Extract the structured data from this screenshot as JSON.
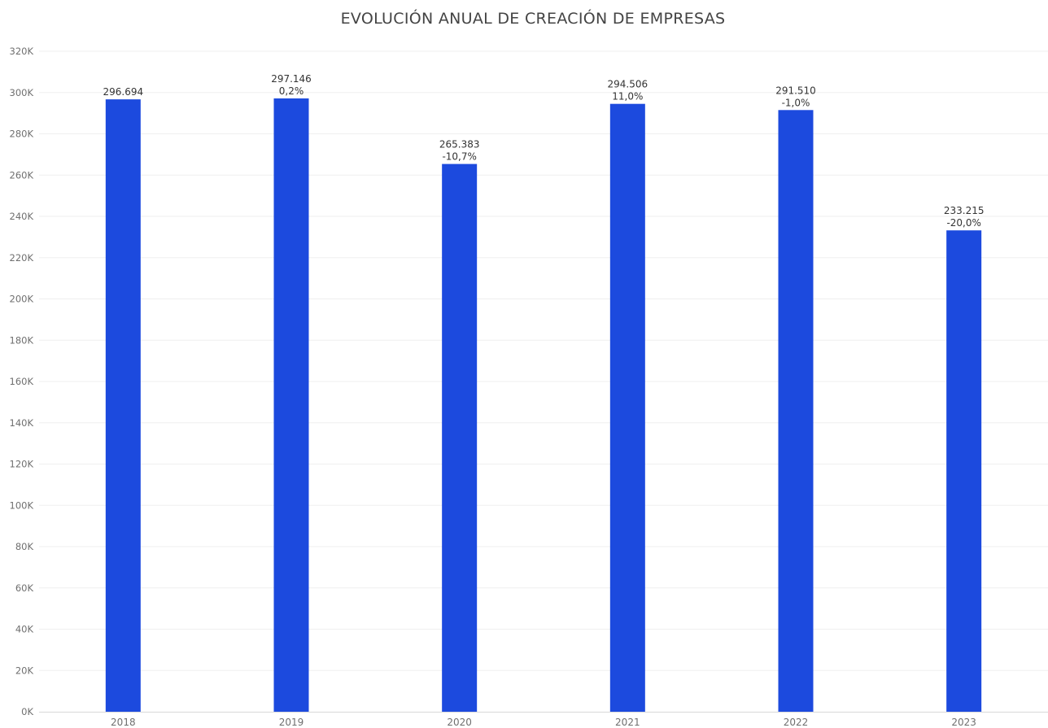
{
  "chart_data": {
    "type": "bar",
    "title": "EVOLUCIÓN ANUAL DE CREACIÓN DE EMPRESAS",
    "xlabel": "",
    "ylabel": "",
    "categories": [
      "2018",
      "2019",
      "2020",
      "2021",
      "2022",
      "2023"
    ],
    "values": [
      296694,
      297146,
      265383,
      294506,
      291510,
      233215
    ],
    "value_labels": [
      "296.694",
      "297.146",
      "265.383",
      "294.506",
      "291.510",
      "233.215"
    ],
    "change_labels": [
      "",
      "0,2%",
      "-10,7%",
      "11,0%",
      "-1,0%",
      "-20,0%"
    ],
    "y_ticks": [
      0,
      20000,
      40000,
      60000,
      80000,
      100000,
      120000,
      140000,
      160000,
      180000,
      200000,
      220000,
      240000,
      260000,
      280000,
      300000,
      320000
    ],
    "y_tick_labels": [
      "0K",
      "20K",
      "40K",
      "60K",
      "80K",
      "100K",
      "120K",
      "140K",
      "160K",
      "180K",
      "200K",
      "220K",
      "240K",
      "260K",
      "280K",
      "300K",
      "320K"
    ],
    "ylim": [
      0,
      320000
    ],
    "grid": true,
    "legend": "none",
    "bar_color": "#1c4ade",
    "grid_color": "#efefef",
    "axis_color": "#d9d9d9"
  }
}
